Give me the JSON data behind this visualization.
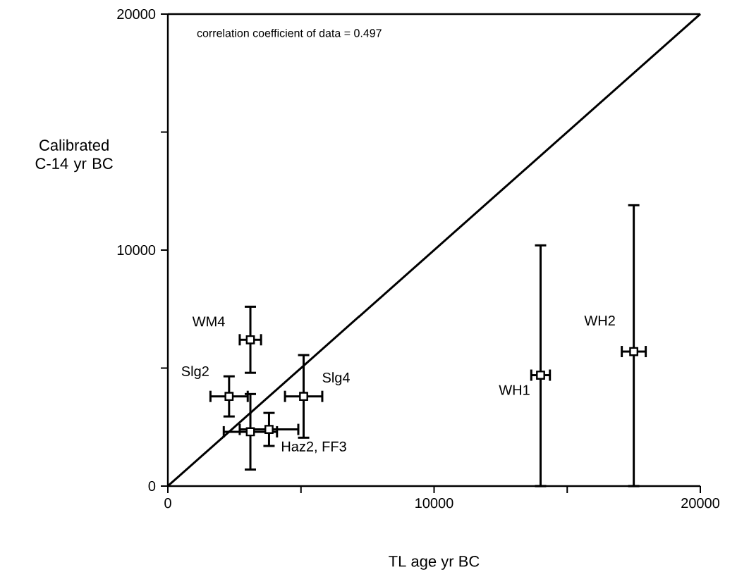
{
  "chart_data": {
    "type": "scatter",
    "xlabel": "TL age yr BC",
    "ylabel": "Calibrated C-14 yr BC",
    "xlim": [
      0,
      20000
    ],
    "ylim": [
      0,
      20000
    ],
    "xticks": [
      0,
      {
        "value": 5000,
        "label": null
      },
      10000,
      {
        "value": 15000,
        "label": null
      },
      20000
    ],
    "yticks": [
      0,
      {
        "value": 5000,
        "label": null
      },
      10000,
      {
        "value": 15000,
        "label": null
      },
      20000
    ],
    "marker": "square",
    "series": [
      {
        "color": "#000000",
        "x": [
          3100,
          2300,
          3100,
          3800,
          5100,
          14000,
          17500
        ],
        "values": [
          6200,
          3800,
          2300,
          2400,
          3800,
          4700,
          5700
        ],
        "errors": [
          1400,
          850,
          1600,
          700,
          1750,
          [
            0,
            10200
          ],
          [
            0,
            11900
          ]
        ],
        "xerrors": [
          400,
          700,
          1000,
          1100,
          700,
          350,
          450
        ]
      },
      {
        "type": "line",
        "color": "#000000",
        "marker": "none",
        "x": [
          0,
          20000
        ],
        "values": [
          0,
          20000
        ]
      }
    ],
    "annotations": [
      "correlation coefficient of data = 0.497",
      {
        "text": "WM4",
        "x": 3100,
        "y": 6200
      },
      {
        "text": "Slg2",
        "x": 2300,
        "y": 3800
      },
      {
        "text": "Haz2, FF3",
        "x": 3100,
        "y": 2300
      },
      {
        "text": "Slg4",
        "x": 5100,
        "y": 3800
      },
      {
        "text": "WH1",
        "x": 14000,
        "y": 4700
      },
      {
        "text": "WH2",
        "x": 17500,
        "y": 5700
      }
    ]
  }
}
